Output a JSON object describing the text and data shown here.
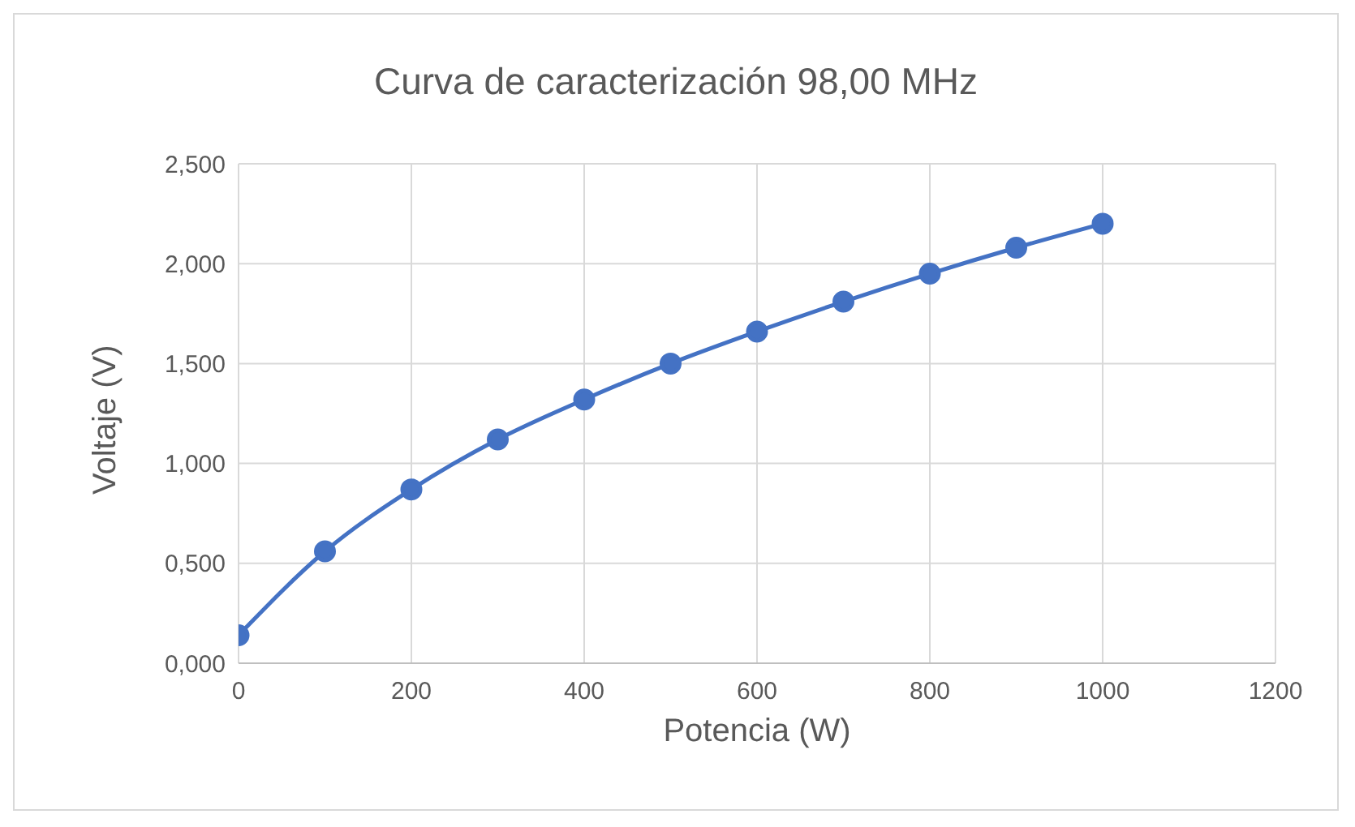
{
  "chart_data": {
    "type": "line",
    "title": "Curva de caracterización 98,00 MHz",
    "xlabel": "Potencia (W)",
    "ylabel": "Voltaje (V)",
    "x": [
      0,
      100,
      200,
      300,
      400,
      500,
      600,
      700,
      800,
      900,
      1000
    ],
    "series": [
      {
        "color": "#4472c4",
        "values": [
          0.14,
          0.56,
          0.87,
          1.12,
          1.32,
          1.5,
          1.66,
          1.81,
          1.95,
          2.08,
          2.2
        ]
      }
    ],
    "xlim": [
      0,
      1200
    ],
    "xticks": [
      0,
      200,
      400,
      600,
      800,
      1000,
      1200
    ],
    "ylim": [
      0,
      2.5
    ],
    "yticks": [
      {
        "value": 0,
        "label": "0,000"
      },
      {
        "value": 0.5,
        "label": "0,500"
      },
      {
        "value": 1,
        "label": "1,000"
      },
      {
        "value": 1.5,
        "label": "1,500"
      },
      {
        "value": 2,
        "label": "2,000"
      },
      {
        "value": 2.5,
        "label": "2,500"
      }
    ],
    "grid": true,
    "marker": "circle",
    "line_style": "solid",
    "legend": false
  }
}
